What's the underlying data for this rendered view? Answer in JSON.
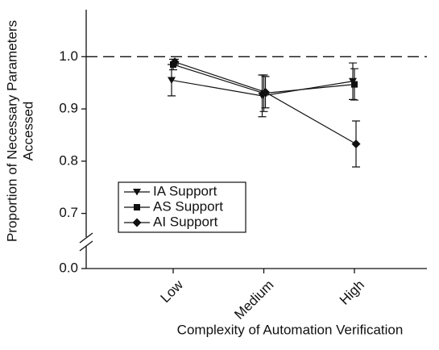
{
  "chart_data": {
    "type": "line",
    "xlabel": "Complexity of Automation Verification",
    "ylabel": [
      "Proportion of Necessary Parameters",
      "Accessed"
    ],
    "categories": [
      "Low",
      "Medium",
      "High"
    ],
    "series": [
      {
        "name": "IA Support",
        "color": "#111111",
        "marker": "triangle-down",
        "values": [
          0.955,
          0.925,
          0.953
        ],
        "errors": [
          0.03,
          0.04,
          0.035
        ]
      },
      {
        "name": "AS Support",
        "color": "#111111",
        "marker": "square",
        "values": [
          0.985,
          0.93,
          0.947
        ],
        "errors": [
          0.01,
          0.035,
          0.03
        ]
      },
      {
        "name": "AI Support",
        "color": "#111111",
        "marker": "diamond",
        "values": [
          0.99,
          0.932,
          0.833
        ],
        "errors": [
          0.005,
          0.03,
          0.044
        ]
      }
    ],
    "ylim": [
      0,
      1.09
    ],
    "y_break": [
      0.02,
      0.65
    ],
    "yticks": [
      {
        "value": 0,
        "label": "0.0"
      },
      0.7,
      0.8,
      0.9,
      {
        "value": 1,
        "label": "1.0"
      }
    ],
    "reference_line": 1,
    "legend": "lower left"
  }
}
